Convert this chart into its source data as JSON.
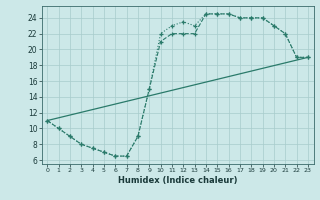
{
  "xlabel": "Humidex (Indice chaleur)",
  "bg_color": "#cce8e8",
  "grid_color": "#a8cccc",
  "line_color": "#2a7a6a",
  "xlim": [
    -0.5,
    23.5
  ],
  "ylim": [
    5.5,
    25.5
  ],
  "xticks": [
    0,
    1,
    2,
    3,
    4,
    5,
    6,
    7,
    8,
    9,
    10,
    11,
    12,
    13,
    14,
    15,
    16,
    17,
    18,
    19,
    20,
    21,
    22,
    23
  ],
  "yticks": [
    6,
    8,
    10,
    12,
    14,
    16,
    18,
    20,
    22,
    24
  ],
  "curve1_x": [
    0,
    1,
    2,
    3,
    4,
    5,
    6,
    7,
    8,
    9,
    10,
    11,
    12,
    13,
    14,
    15,
    16,
    17,
    18,
    19,
    20,
    21,
    22,
    23
  ],
  "curve1_y": [
    11,
    10,
    9,
    8,
    7.5,
    7,
    6.5,
    6.5,
    9,
    15,
    22,
    23,
    23.5,
    23,
    24.5,
    24.5,
    24.5,
    24,
    24,
    24,
    23,
    22,
    19,
    19
  ],
  "curve2_x": [
    0,
    1,
    2,
    3,
    4,
    5,
    6,
    7,
    8,
    9,
    10,
    11,
    12,
    13,
    14,
    15,
    16,
    17,
    18,
    19,
    20,
    21,
    22,
    23
  ],
  "curve2_y": [
    11,
    10,
    9,
    8,
    7.5,
    7,
    6.5,
    6.5,
    9,
    15,
    21,
    22,
    22,
    22,
    24.5,
    24.5,
    24.5,
    24,
    24,
    24,
    23,
    22,
    19,
    19
  ],
  "line3_x": [
    0,
    23
  ],
  "line3_y": [
    11,
    19
  ]
}
